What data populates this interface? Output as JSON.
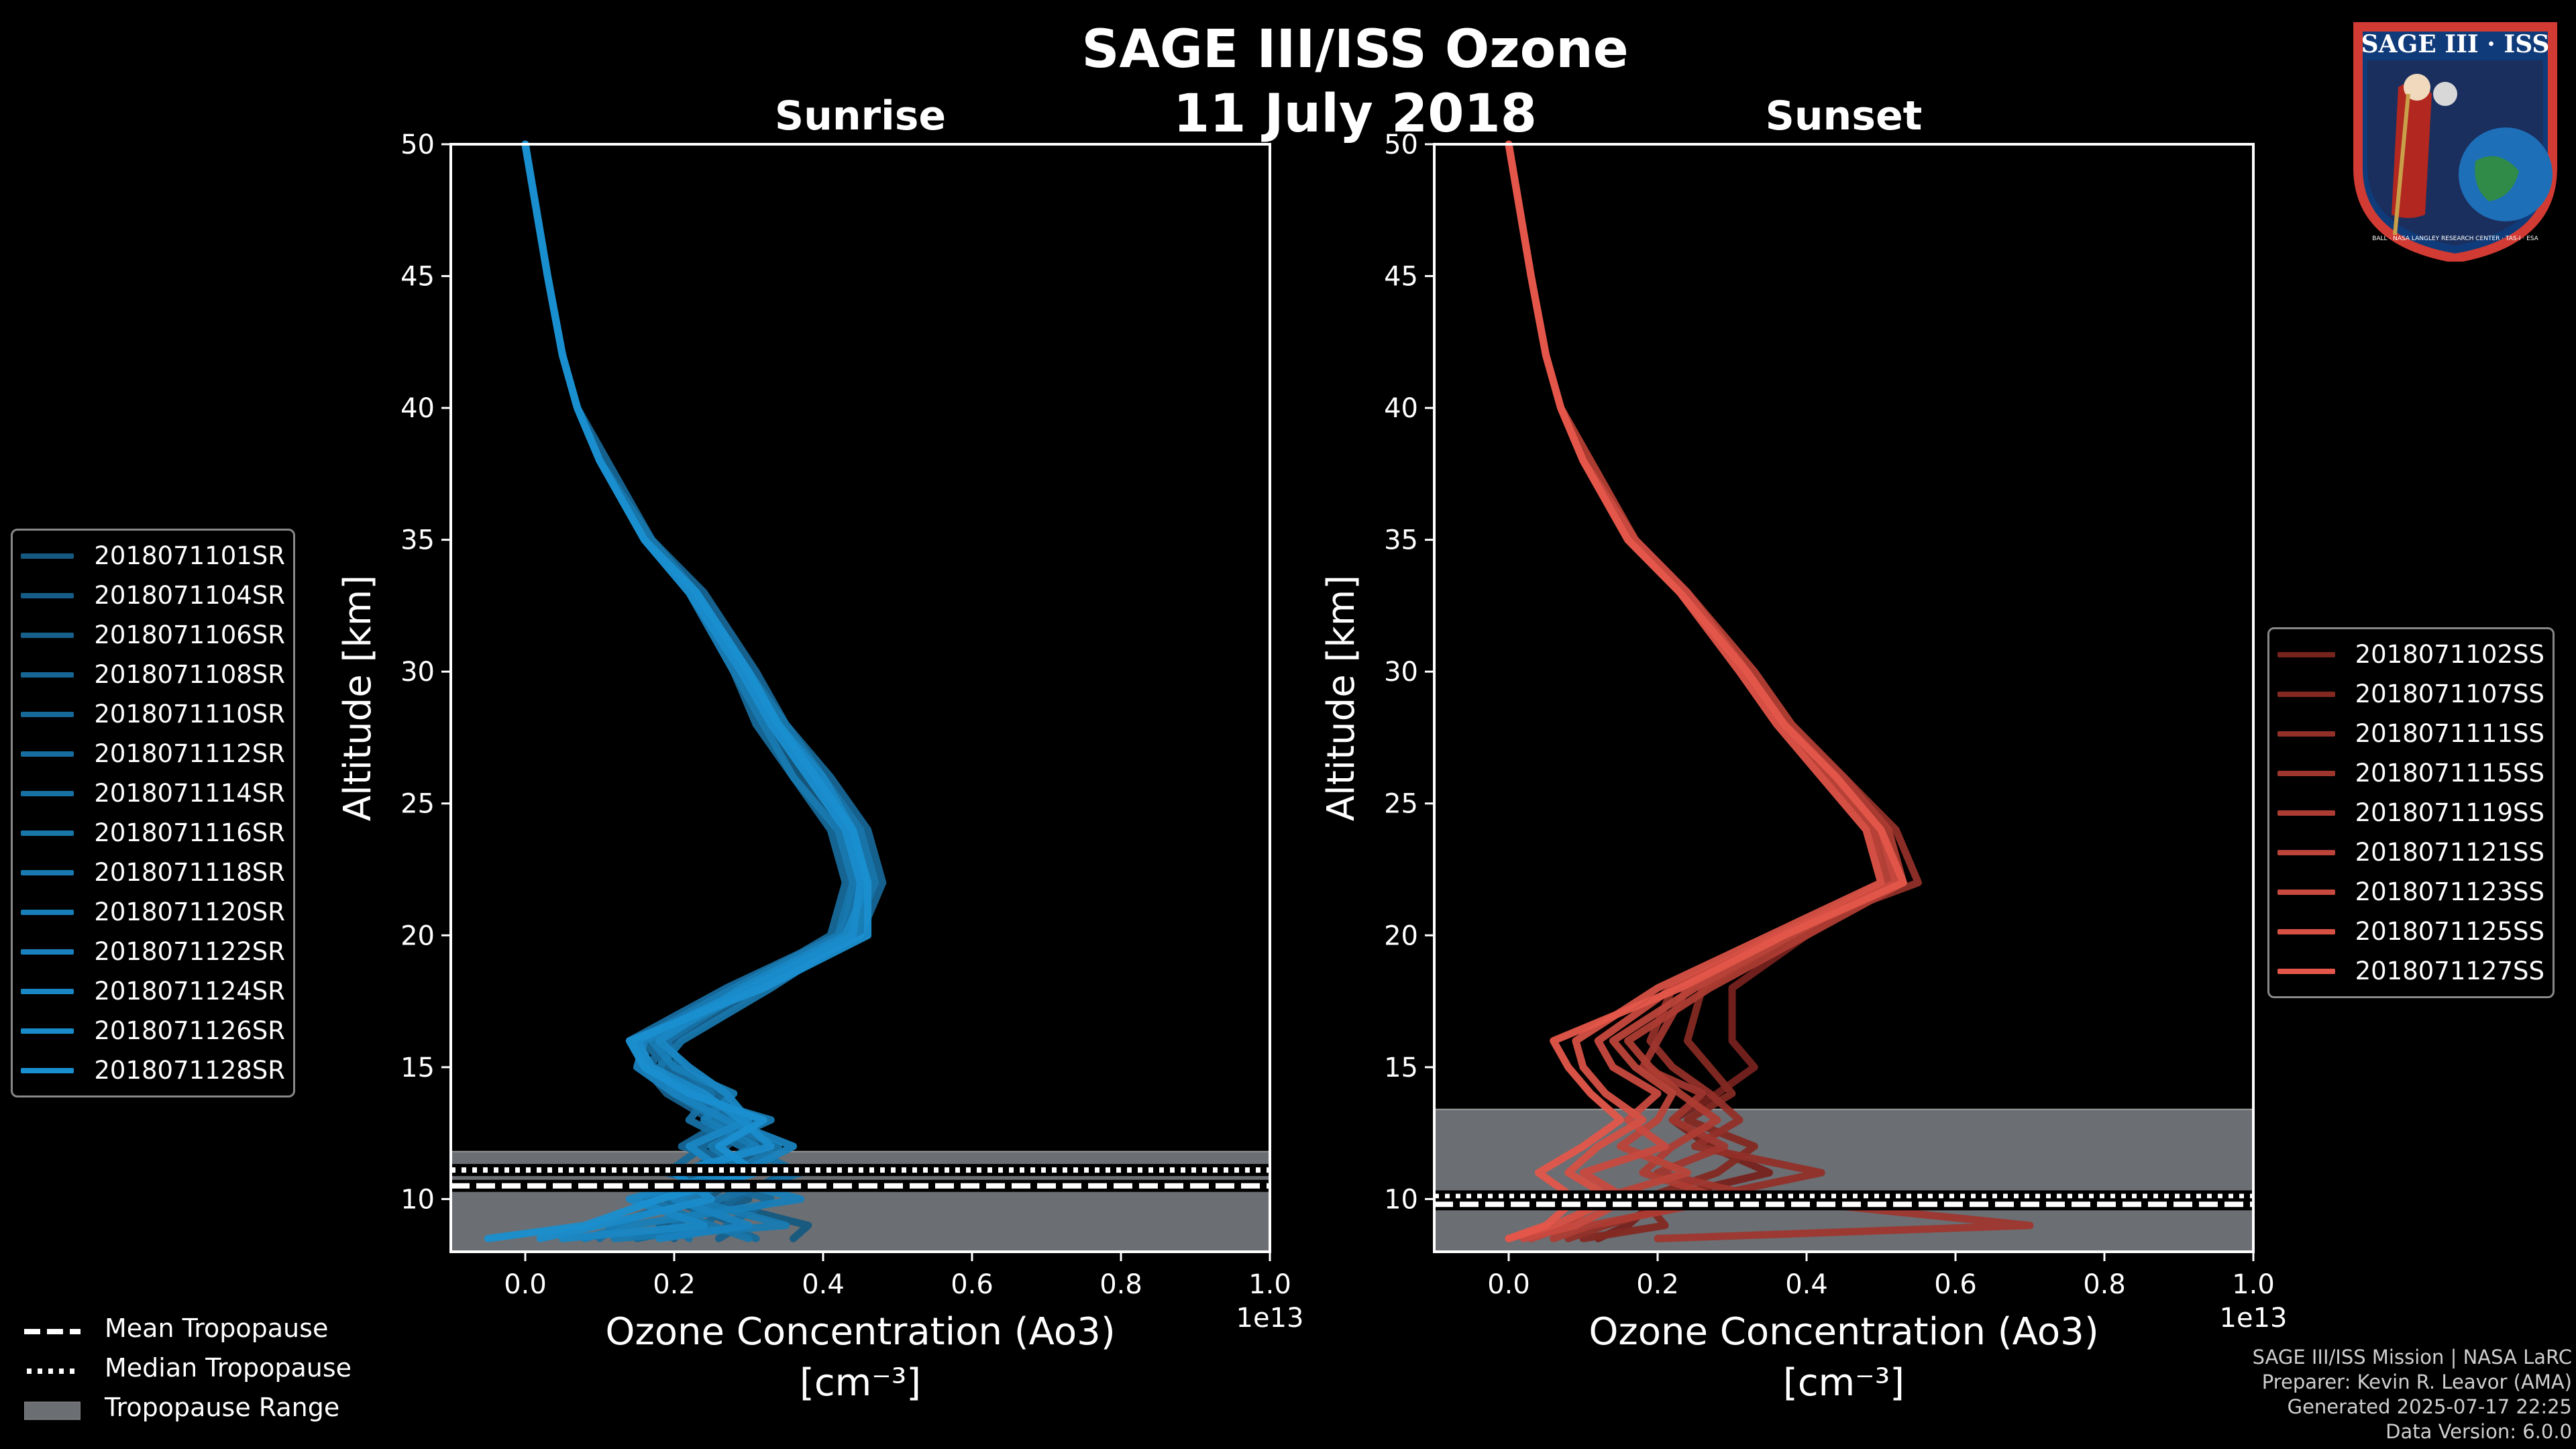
{
  "title": "SAGE III/ISS Ozone",
  "date": "11 July 2018",
  "colors": {
    "background": "#000000",
    "sunrise": "#1a8fd0",
    "sunset": "#e4564a",
    "tropo_band": "#6b6e73",
    "axis": "#ffffff"
  },
  "panels": [
    {
      "key": "sunrise",
      "title": "Sunrise",
      "ylabel": "Altitude [km]",
      "xlabel_line1": "Ozone Concentration (Ao3)",
      "xlabel_line2": "[cm⁻³]",
      "offset_text": "1e13",
      "tropopause": {
        "range": [
          8,
          11.8
        ],
        "mean": 10.5,
        "median": 11.1
      }
    },
    {
      "key": "sunset",
      "title": "Sunset",
      "ylabel": "Altitude [km]",
      "xlabel_line1": "Ozone Concentration (Ao3)",
      "xlabel_line2": "[cm⁻³]",
      "offset_text": "1e13",
      "tropopause": {
        "range": [
          8,
          13.4
        ],
        "mean": 9.8,
        "median": 10.1
      }
    }
  ],
  "chart_data": {
    "type": "line",
    "title": "SAGE III/ISS Ozone — 11 July 2018",
    "xlim": [
      -0.1,
      1.0
    ],
    "ylim": [
      8,
      50
    ],
    "x_ticks": [
      "0.0",
      "0.2",
      "0.4",
      "0.6",
      "0.8",
      "1.0"
    ],
    "x_tick_values": [
      0.0,
      0.2,
      0.4,
      0.6,
      0.8,
      1.0
    ],
    "y_ticks": [
      "10",
      "15",
      "20",
      "25",
      "30",
      "35",
      "40",
      "45",
      "50"
    ],
    "y_tick_values": [
      10,
      15,
      20,
      25,
      30,
      35,
      40,
      45,
      50
    ],
    "altitudes": [
      50,
      45,
      42,
      40,
      38,
      35,
      33,
      30,
      28,
      26,
      24,
      22,
      20,
      18,
      16,
      15,
      14,
      13,
      12,
      11,
      10,
      9,
      8.5
    ],
    "sunrise_series": [
      {
        "name": "2018071101SR",
        "values": [
          0.0,
          0.03,
          0.05,
          0.07,
          0.1,
          0.16,
          0.22,
          0.28,
          0.32,
          0.37,
          0.42,
          0.44,
          0.43,
          0.3,
          0.18,
          0.17,
          0.21,
          0.29,
          0.22,
          0.3,
          0.24,
          0.38,
          0.36
        ]
      },
      {
        "name": "2018071104SR",
        "values": [
          0.0,
          0.03,
          0.05,
          0.07,
          0.1,
          0.17,
          0.23,
          0.3,
          0.34,
          0.4,
          0.45,
          0.47,
          0.42,
          0.28,
          0.15,
          0.2,
          0.24,
          0.31,
          0.27,
          0.22,
          0.3,
          0.18,
          0.2
        ]
      },
      {
        "name": "2018071106SR",
        "values": [
          0.0,
          0.03,
          0.05,
          0.07,
          0.1,
          0.16,
          0.22,
          0.29,
          0.33,
          0.38,
          0.43,
          0.45,
          0.44,
          0.32,
          0.2,
          0.16,
          0.19,
          0.25,
          0.33,
          0.26,
          0.19,
          0.29,
          0.26
        ]
      },
      {
        "name": "2018071108SR",
        "values": [
          0.0,
          0.03,
          0.05,
          0.07,
          0.11,
          0.17,
          0.24,
          0.31,
          0.35,
          0.41,
          0.46,
          0.48,
          0.45,
          0.31,
          0.18,
          0.17,
          0.22,
          0.27,
          0.21,
          0.35,
          0.28,
          0.24,
          0.15
        ]
      },
      {
        "name": "2018071110SR",
        "values": [
          0.0,
          0.03,
          0.05,
          0.07,
          0.1,
          0.16,
          0.22,
          0.28,
          0.31,
          0.36,
          0.41,
          0.43,
          0.41,
          0.29,
          0.16,
          0.19,
          0.26,
          0.3,
          0.24,
          0.19,
          0.33,
          0.27,
          0.31
        ]
      },
      {
        "name": "2018071112SR",
        "values": [
          0.0,
          0.03,
          0.05,
          0.07,
          0.1,
          0.16,
          0.23,
          0.3,
          0.34,
          0.39,
          0.44,
          0.46,
          0.42,
          0.27,
          0.14,
          0.16,
          0.23,
          0.28,
          0.31,
          0.24,
          0.21,
          0.12,
          0.1
        ]
      },
      {
        "name": "2018071114SR",
        "values": [
          0.0,
          0.03,
          0.05,
          0.07,
          0.1,
          0.16,
          0.22,
          0.29,
          0.33,
          0.38,
          0.43,
          0.45,
          0.43,
          0.3,
          0.19,
          0.21,
          0.25,
          0.22,
          0.29,
          0.37,
          0.26,
          0.2,
          0.22
        ]
      },
      {
        "name": "2018071116SR",
        "values": [
          0.0,
          0.03,
          0.05,
          0.07,
          0.1,
          0.17,
          0.23,
          0.3,
          0.35,
          0.4,
          0.45,
          0.47,
          0.44,
          0.33,
          0.21,
          0.18,
          0.2,
          0.26,
          0.34,
          0.28,
          0.16,
          0.25,
          0.3
        ]
      },
      {
        "name": "2018071118SR",
        "values": [
          0.0,
          0.03,
          0.05,
          0.07,
          0.1,
          0.16,
          0.22,
          0.28,
          0.32,
          0.36,
          0.42,
          0.44,
          0.42,
          0.28,
          0.15,
          0.17,
          0.21,
          0.33,
          0.25,
          0.3,
          0.22,
          0.35,
          0.12
        ]
      },
      {
        "name": "2018071120SR",
        "values": [
          0.0,
          0.03,
          0.05,
          0.07,
          0.1,
          0.16,
          0.23,
          0.3,
          0.34,
          0.39,
          0.44,
          0.46,
          0.45,
          0.31,
          0.17,
          0.2,
          0.28,
          0.24,
          0.31,
          0.23,
          0.37,
          0.14,
          0.08
        ]
      },
      {
        "name": "2018071122SR",
        "values": [
          0.0,
          0.03,
          0.05,
          0.07,
          0.1,
          0.16,
          0.22,
          0.29,
          0.33,
          0.38,
          0.43,
          0.45,
          0.44,
          0.3,
          0.16,
          0.15,
          0.2,
          0.27,
          0.36,
          0.29,
          0.2,
          0.3,
          0.18
        ]
      },
      {
        "name": "2018071124SR",
        "values": [
          0.0,
          0.03,
          0.05,
          0.07,
          0.1,
          0.16,
          0.23,
          0.3,
          0.34,
          0.4,
          0.44,
          0.46,
          0.43,
          0.29,
          0.18,
          0.22,
          0.27,
          0.3,
          0.22,
          0.27,
          0.14,
          0.24,
          0.05
        ]
      },
      {
        "name": "2018071126SR",
        "values": [
          0.0,
          0.03,
          0.05,
          0.07,
          0.1,
          0.16,
          0.22,
          0.29,
          0.33,
          0.38,
          0.43,
          0.45,
          0.44,
          0.3,
          0.15,
          0.17,
          0.24,
          0.29,
          0.33,
          0.2,
          0.25,
          0.1,
          0.02
        ]
      },
      {
        "name": "2018071128SR",
        "values": [
          0.0,
          0.03,
          0.05,
          0.07,
          0.1,
          0.16,
          0.23,
          0.3,
          0.34,
          0.39,
          0.44,
          0.46,
          0.46,
          0.32,
          0.14,
          0.16,
          0.22,
          0.32,
          0.26,
          0.31,
          0.18,
          0.08,
          -0.05
        ]
      }
    ],
    "sunset_series": [
      {
        "name": "2018071102SS",
        "values": [
          0.0,
          0.03,
          0.05,
          0.07,
          0.1,
          0.16,
          0.23,
          0.31,
          0.36,
          0.43,
          0.49,
          0.5,
          0.4,
          0.3,
          0.3,
          0.33,
          0.28,
          0.22,
          0.27,
          0.35,
          0.2,
          0.16,
          0.12
        ]
      },
      {
        "name": "2018071107SS",
        "values": [
          0.0,
          0.03,
          0.05,
          0.07,
          0.11,
          0.17,
          0.24,
          0.33,
          0.38,
          0.44,
          0.5,
          0.52,
          0.38,
          0.26,
          0.24,
          0.27,
          0.3,
          0.24,
          0.33,
          0.28,
          0.18,
          0.21,
          0.1
        ]
      },
      {
        "name": "2018071111SS",
        "values": [
          0.0,
          0.03,
          0.05,
          0.07,
          0.1,
          0.16,
          0.24,
          0.32,
          0.37,
          0.45,
          0.52,
          0.55,
          0.36,
          0.22,
          0.19,
          0.22,
          0.27,
          0.31,
          0.25,
          0.42,
          0.25,
          0.13,
          0.08
        ]
      },
      {
        "name": "2018071115SS",
        "values": [
          0.0,
          0.03,
          0.05,
          0.07,
          0.1,
          0.16,
          0.23,
          0.31,
          0.36,
          0.42,
          0.48,
          0.5,
          0.37,
          0.24,
          0.2,
          0.18,
          0.26,
          0.22,
          0.29,
          0.2,
          0.35,
          0.7,
          0.2
        ]
      },
      {
        "name": "2018071119SS",
        "values": [
          0.0,
          0.03,
          0.05,
          0.07,
          0.11,
          0.17,
          0.24,
          0.33,
          0.38,
          0.45,
          0.51,
          0.53,
          0.4,
          0.27,
          0.16,
          0.19,
          0.23,
          0.28,
          0.22,
          0.18,
          0.29,
          0.11,
          0.06
        ]
      },
      {
        "name": "2018071121SS",
        "values": [
          0.0,
          0.03,
          0.05,
          0.07,
          0.1,
          0.16,
          0.23,
          0.31,
          0.36,
          0.43,
          0.49,
          0.51,
          0.38,
          0.25,
          0.14,
          0.17,
          0.22,
          0.2,
          0.15,
          0.24,
          0.12,
          0.08,
          0.03
        ]
      },
      {
        "name": "2018071123SS",
        "values": [
          0.0,
          0.03,
          0.05,
          0.07,
          0.1,
          0.17,
          0.24,
          0.32,
          0.37,
          0.44,
          0.5,
          0.52,
          0.36,
          0.22,
          0.12,
          0.14,
          0.2,
          0.16,
          0.21,
          0.1,
          0.16,
          0.09,
          0.02
        ]
      },
      {
        "name": "2018071125SS",
        "values": [
          0.0,
          0.03,
          0.05,
          0.07,
          0.1,
          0.16,
          0.23,
          0.31,
          0.36,
          0.42,
          0.48,
          0.5,
          0.35,
          0.2,
          0.09,
          0.1,
          0.13,
          0.18,
          0.12,
          0.08,
          0.14,
          0.06,
          0.0
        ]
      },
      {
        "name": "2018071127SS",
        "values": [
          0.0,
          0.03,
          0.05,
          0.07,
          0.1,
          0.16,
          0.23,
          0.32,
          0.37,
          0.44,
          0.5,
          0.53,
          0.37,
          0.23,
          0.06,
          0.08,
          0.11,
          0.15,
          0.1,
          0.04,
          0.09,
          0.05,
          0.0
        ]
      }
    ]
  },
  "sunrise_legend": [
    "2018071101SR",
    "2018071104SR",
    "2018071106SR",
    "2018071108SR",
    "2018071110SR",
    "2018071112SR",
    "2018071114SR",
    "2018071116SR",
    "2018071118SR",
    "2018071120SR",
    "2018071122SR",
    "2018071124SR",
    "2018071126SR",
    "2018071128SR"
  ],
  "sunset_legend": [
    "2018071102SS",
    "2018071107SS",
    "2018071111SS",
    "2018071115SS",
    "2018071119SS",
    "2018071121SS",
    "2018071123SS",
    "2018071125SS",
    "2018071127SS"
  ],
  "tropo_legend": {
    "mean": "Mean Tropopause",
    "median": "Median Tropopause",
    "range": "Tropopause Range"
  },
  "credits": [
    "SAGE III/ISS Mission | NASA LaRC",
    "Preparer: Kevin R. Leavor (AMA)",
    "Generated 2025-07-17 22:25",
    "Data Version: 6.0.0"
  ],
  "logo": {
    "title": "SAGE III · ISS",
    "ring_text": "BALL · NASA LANGLEY RESEARCH CENTER · TAS-I · ESA"
  }
}
